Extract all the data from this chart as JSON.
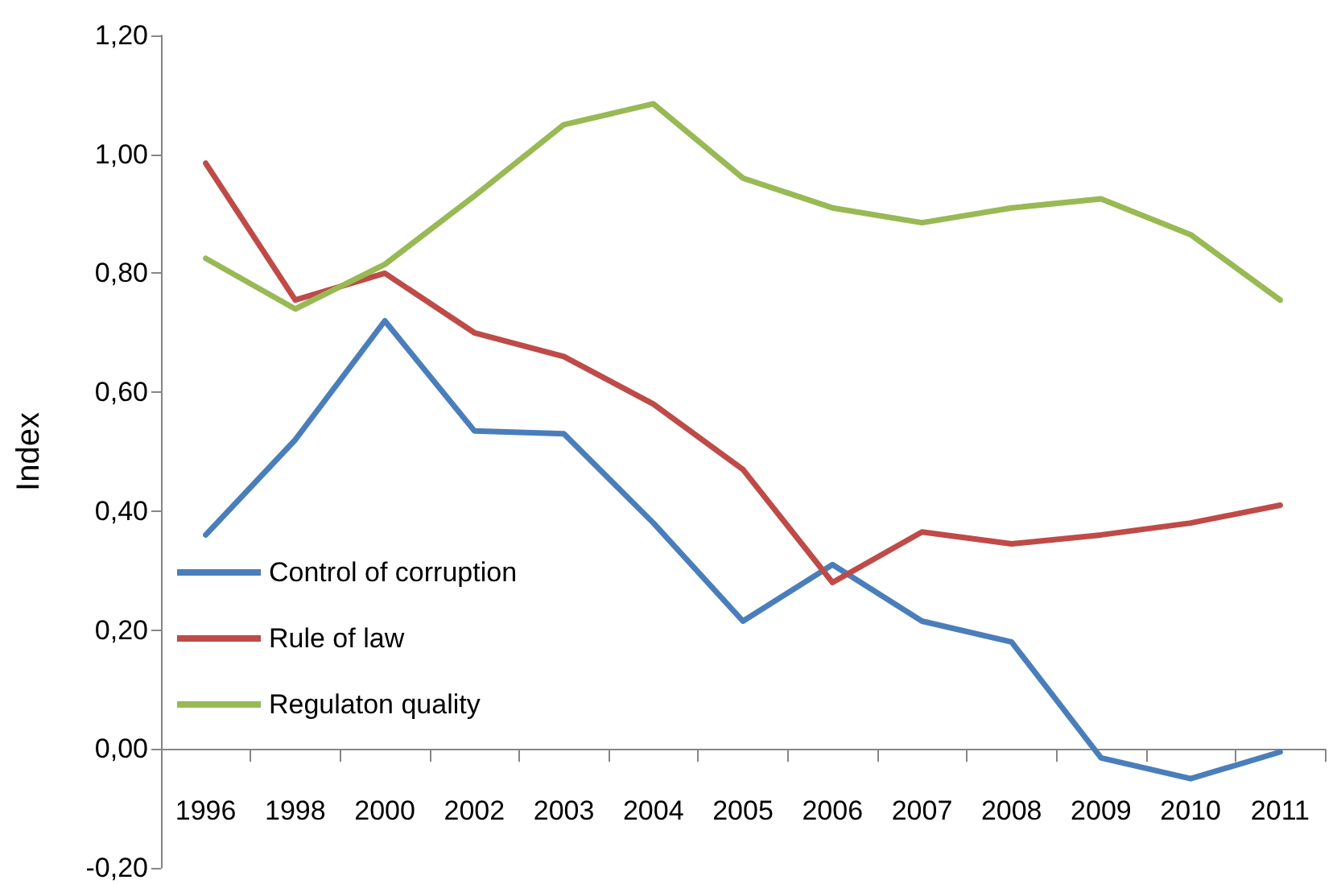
{
  "chart_data": {
    "type": "line",
    "ylabel": "Index",
    "categories": [
      "1996",
      "1998",
      "2000",
      "2002",
      "2003",
      "2004",
      "2005",
      "2006",
      "2007",
      "2008",
      "2009",
      "2010",
      "2011"
    ],
    "series": [
      {
        "name": "Control of corruption",
        "color": "#4a7ebb",
        "values": [
          0.36,
          0.52,
          0.72,
          0.535,
          0.53,
          0.38,
          0.215,
          0.31,
          0.215,
          0.18,
          -0.015,
          -0.05,
          -0.005
        ]
      },
      {
        "name": "Rule of law",
        "color": "#be4b48",
        "values": [
          0.985,
          0.755,
          0.8,
          0.7,
          0.66,
          0.58,
          0.47,
          0.28,
          0.365,
          0.345,
          0.36,
          0.38,
          0.41
        ]
      },
      {
        "name": "Regulaton quality",
        "color": "#98b954",
        "values": [
          0.825,
          0.74,
          0.815,
          0.93,
          1.05,
          1.085,
          0.96,
          0.91,
          0.885,
          0.91,
          0.925,
          0.865,
          0.755
        ]
      }
    ],
    "ylim": [
      -0.2,
      1.2
    ],
    "yticks": [
      {
        "value": -0.2,
        "label": "-0,20"
      },
      {
        "value": 0,
        "label": "0,00"
      },
      {
        "value": 0.2,
        "label": "0,20"
      },
      {
        "value": 0.4,
        "label": "0,40"
      },
      {
        "value": 0.6,
        "label": "0,60"
      },
      {
        "value": 0.8,
        "label": "0,80"
      },
      {
        "value": 1.0,
        "label": "1,00"
      },
      {
        "value": 1.2,
        "label": "1,20"
      }
    ],
    "grid": false,
    "legend": "bottom left",
    "marker": "none",
    "line_style": "solid"
  }
}
